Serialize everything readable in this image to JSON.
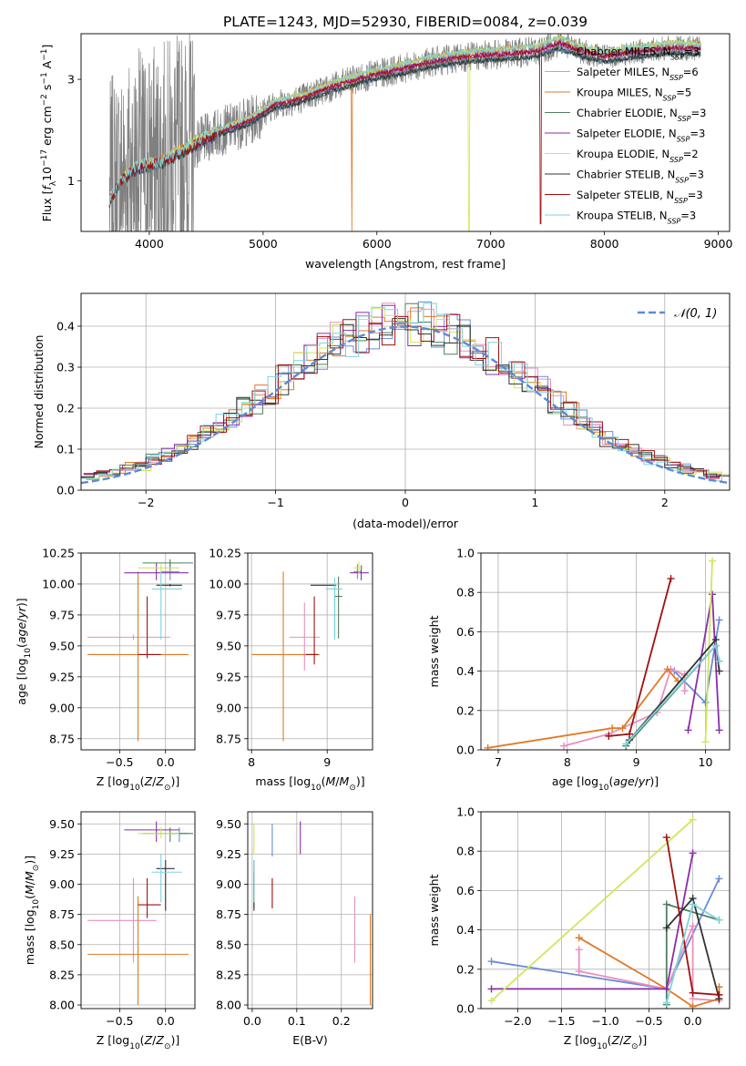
{
  "figure": {
    "title": "PLATE=1243, MJD=52930, FIBERID=0084, z=0.039"
  },
  "colors": {
    "data": "#808080",
    "Chabrier MILES": "#6a8bd8",
    "Salpeter MILES": "#e88fc0",
    "Kroupa MILES": "#e07a26",
    "Chabrier ELODIE": "#4f7f5f",
    "Salpeter ELODIE": "#8a2ea8",
    "Kroupa ELODIE": "#cfe85a",
    "Chabrier STELIB": "#333333",
    "Salpeter STELIB": "#a01010",
    "Kroupa STELIB": "#7dd3dc",
    "gauss": "#5b8ad8",
    "grid": "#b0b0b0"
  },
  "chart_data": [
    {
      "id": "spectrum",
      "type": "line",
      "title": "PLATE=1243, MJD=52930, FIBERID=0084, z=0.039",
      "xlabel": "wavelength [Angstrom, rest frame]",
      "ylabel": "Flux [f_λ 10^-17 erg cm^-2 s^-1 A^-1]",
      "xlim": [
        3400,
        9100
      ],
      "ylim": [
        0,
        3.9
      ],
      "xticks": [
        "4000",
        "5000",
        "6000",
        "7000",
        "8000",
        "9000"
      ],
      "yticks": [
        "1",
        "3"
      ],
      "legend_position": "right",
      "data_series": "observed spectrum (gray, noisy)",
      "continuum_points": [
        [
          3650,
          0.6
        ],
        [
          3750,
          1.0
        ],
        [
          3850,
          1.2
        ],
        [
          3950,
          1.3
        ],
        [
          4100,
          1.35
        ],
        [
          4300,
          1.6
        ],
        [
          4600,
          1.95
        ],
        [
          4900,
          2.2
        ],
        [
          5100,
          2.5
        ],
        [
          5300,
          2.6
        ],
        [
          5600,
          2.85
        ],
        [
          5900,
          3.05
        ],
        [
          6200,
          3.2
        ],
        [
          6500,
          3.35
        ],
        [
          6800,
          3.45
        ],
        [
          7100,
          3.5
        ],
        [
          7400,
          3.55
        ],
        [
          7600,
          3.72
        ],
        [
          7800,
          3.55
        ],
        [
          8000,
          3.45
        ],
        [
          8300,
          3.55
        ],
        [
          8600,
          3.62
        ],
        [
          8850,
          3.6
        ]
      ],
      "dips": [
        {
          "x": 5780,
          "y": 0,
          "series": "Kroupa MILES"
        },
        {
          "x": 6810,
          "y": 0,
          "series": "Kroupa ELODIE"
        },
        {
          "x": 7440,
          "y": 0.15,
          "series": "Salpeter STELIB"
        }
      ],
      "series": [
        {
          "name": "Chabrier MILES",
          "n_ssp": "3"
        },
        {
          "name": "Salpeter MILES",
          "n_ssp": "6"
        },
        {
          "name": "Kroupa MILES",
          "n_ssp": "5"
        },
        {
          "name": "Chabrier ELODIE",
          "n_ssp": "3"
        },
        {
          "name": "Salpeter ELODIE",
          "n_ssp": "3"
        },
        {
          "name": "Kroupa ELODIE",
          "n_ssp": "2"
        },
        {
          "name": "Chabrier STELIB",
          "n_ssp": "3"
        },
        {
          "name": "Salpeter STELIB",
          "n_ssp": "3"
        },
        {
          "name": "Kroupa STELIB",
          "n_ssp": "3"
        }
      ]
    },
    {
      "id": "residuals",
      "type": "histogram",
      "xlabel": "(data-model)/error",
      "ylabel": "Normed distribution",
      "xlim": [
        -2.5,
        2.5
      ],
      "ylim": [
        0,
        0.48
      ],
      "xticks": [
        "−2",
        "−1",
        "0",
        "1",
        "2"
      ],
      "yticks": [
        "0.0",
        "0.1",
        "0.2",
        "0.3",
        "0.4"
      ],
      "grid": true,
      "legend_position": "top-right",
      "legend_label": "𝒩(0, 1)",
      "bins": 50,
      "reference_curve": "normal distribution, mean 0, sd 1"
    },
    {
      "id": "age_vs_Z",
      "type": "errorbar",
      "xlabel": "Z [log10(Z/Z⊙)]",
      "ylabel": "age [log10(age/yr)]",
      "xlim": [
        -0.92,
        0.32
      ],
      "ylim": [
        8.66,
        10.25
      ],
      "xticks": [
        "−0.5",
        "0.0"
      ],
      "yticks": [
        "8.75",
        "9.00",
        "9.25",
        "9.50",
        "9.75",
        "10.00",
        "10.25"
      ],
      "points": [
        {
          "series": "Chabrier MILES",
          "x": 0.05,
          "xlo": -0.05,
          "xhi": 0.15,
          "y": 10.1,
          "ylo": 10.03,
          "yhi": 10.17
        },
        {
          "series": "Salpeter MILES",
          "x": -0.35,
          "xlo": -0.85,
          "xhi": 0.05,
          "y": 9.57,
          "ylo": 9.55,
          "yhi": 9.59
        },
        {
          "series": "Kroupa MILES",
          "x": -0.3,
          "xlo": -0.85,
          "xhi": 0.25,
          "y": 9.43,
          "ylo": 8.73,
          "yhi": 10.1
        },
        {
          "series": "Chabrier ELODIE",
          "x": 0.05,
          "xlo": -0.25,
          "xhi": 0.3,
          "y": 10.17,
          "ylo": 10.12,
          "yhi": 10.2
        },
        {
          "series": "Salpeter ELODIE",
          "x": -0.1,
          "xlo": -0.45,
          "xhi": 0.25,
          "y": 10.09,
          "ylo": 10.03,
          "yhi": 10.17
        },
        {
          "series": "Kroupa ELODIE",
          "x": -0.05,
          "xlo": -0.3,
          "xhi": 0.15,
          "y": 10.13,
          "ylo": 10.1,
          "yhi": 10.16
        },
        {
          "series": "Chabrier STELIB",
          "x": 0.05,
          "xlo": -0.1,
          "xhi": 0.18,
          "y": 9.99,
          "ylo": 9.98,
          "yhi": 10.0
        },
        {
          "series": "Salpeter STELIB",
          "x": -0.2,
          "xlo": -0.3,
          "xhi": -0.05,
          "y": 9.43,
          "ylo": 9.4,
          "yhi": 9.9
        },
        {
          "series": "Kroupa STELIB",
          "x": -0.05,
          "xlo": -0.15,
          "xhi": 0.18,
          "y": 9.96,
          "ylo": 9.55,
          "yhi": 10.1
        }
      ]
    },
    {
      "id": "age_vs_mass",
      "type": "errorbar",
      "xlabel": "mass [log10(M/M⊙)]",
      "ylabel": "",
      "xlim": [
        7.95,
        9.6
      ],
      "ylim": [
        8.66,
        10.25
      ],
      "xticks": [
        "8",
        "9"
      ],
      "yticks": [
        "8.75",
        "9.00",
        "9.25",
        "9.50",
        "9.75",
        "10.00",
        "10.25"
      ],
      "points": [
        {
          "series": "Chabrier MILES",
          "x": 9.4,
          "xlo": 9.35,
          "xhi": 9.45,
          "y": 10.1,
          "ylo": 10.04,
          "yhi": 10.16
        },
        {
          "series": "Salpeter MILES",
          "x": 8.7,
          "xlo": 8.5,
          "xhi": 8.9,
          "y": 9.57,
          "ylo": 9.3,
          "yhi": 9.85
        },
        {
          "series": "Kroupa MILES",
          "x": 8.42,
          "xlo": 8.0,
          "xhi": 8.9,
          "y": 9.43,
          "ylo": 8.73,
          "yhi": 10.1
        },
        {
          "series": "Chabrier ELODIE",
          "x": 9.15,
          "xlo": 9.1,
          "xhi": 9.2,
          "y": 9.9,
          "ylo": 9.56,
          "yhi": 10.06
        },
        {
          "series": "Salpeter ELODIE",
          "x": 9.45,
          "xlo": 9.3,
          "xhi": 9.55,
          "y": 10.09,
          "ylo": 10.03,
          "yhi": 10.15
        },
        {
          "series": "Kroupa ELODIE",
          "x": 9.42,
          "xlo": 9.35,
          "xhi": 9.48,
          "y": 10.13,
          "ylo": 10.08,
          "yhi": 10.18
        },
        {
          "series": "Chabrier STELIB",
          "x": 9.1,
          "xlo": 8.78,
          "xhi": 9.12,
          "y": 9.99,
          "ylo": 9.57,
          "yhi": 10.0
        },
        {
          "series": "Salpeter STELIB",
          "x": 8.83,
          "xlo": 8.72,
          "xhi": 8.88,
          "y": 9.43,
          "ylo": 9.35,
          "yhi": 9.9
        },
        {
          "series": "Kroupa STELIB",
          "x": 9.1,
          "xlo": 8.98,
          "xhi": 9.2,
          "y": 9.96,
          "ylo": 9.55,
          "yhi": 10.05
        }
      ]
    },
    {
      "id": "weight_vs_age",
      "type": "line",
      "xlabel": "age [log10(age/yr)]",
      "ylabel": "mass weight",
      "xlim": [
        6.75,
        10.35
      ],
      "ylim": [
        0,
        1.0
      ],
      "xticks": [
        "7",
        "8",
        "9",
        "10"
      ],
      "yticks": [
        "0.0",
        "0.2",
        "0.4",
        "0.6",
        "0.8",
        "1.0"
      ],
      "grid": true,
      "series": [
        {
          "name": "Chabrier MILES",
          "x": [
            9.55,
            10.0,
            10.2
          ],
          "y": [
            0.4,
            0.24,
            0.66
          ]
        },
        {
          "name": "Salpeter MILES",
          "x": [
            7.95,
            8.6,
            9.3,
            9.5,
            9.7,
            9.7
          ],
          "y": [
            0.02,
            0.08,
            0.19,
            0.41,
            0.38,
            0.3
          ]
        },
        {
          "name": "Kroupa MILES",
          "x": [
            6.85,
            8.65,
            8.8,
            9.45,
            9.6
          ],
          "y": [
            0.01,
            0.11,
            0.11,
            0.41,
            0.35
          ]
        },
        {
          "name": "Chabrier ELODIE",
          "x": [
            8.85,
            10.15,
            10.2
          ],
          "y": [
            0.02,
            0.53,
            0.45
          ]
        },
        {
          "name": "Salpeter ELODIE",
          "x": [
            9.75,
            10.1,
            10.2
          ],
          "y": [
            0.1,
            0.79,
            0.1
          ]
        },
        {
          "name": "Kroupa ELODIE",
          "x": [
            10.0,
            10.1
          ],
          "y": [
            0.04,
            0.96
          ]
        },
        {
          "name": "Chabrier STELIB",
          "x": [
            8.9,
            10.15,
            10.2
          ],
          "y": [
            0.05,
            0.56,
            0.4
          ]
        },
        {
          "name": "Salpeter STELIB",
          "x": [
            8.6,
            8.9,
            9.5
          ],
          "y": [
            0.07,
            0.08,
            0.87
          ]
        },
        {
          "name": "Kroupa STELIB",
          "x": [
            8.85,
            10.15,
            10.2
          ],
          "y": [
            0.03,
            0.53,
            0.45
          ]
        }
      ]
    },
    {
      "id": "mass_vs_Z",
      "type": "errorbar",
      "xlabel": "Z [log10(Z/Z⊙)]",
      "ylabel": "mass [log10(M/M⊙)]",
      "xlim": [
        -0.92,
        0.32
      ],
      "ylim": [
        7.97,
        9.6
      ],
      "xticks": [
        "−0.5",
        "0.0"
      ],
      "yticks": [
        "8.00",
        "8.25",
        "8.50",
        "8.75",
        "9.00",
        "9.25",
        "9.50"
      ],
      "points": [
        {
          "series": "Chabrier MILES",
          "x": 0.15,
          "xlo": 0.05,
          "xhi": 0.25,
          "y": 9.42,
          "ylo": 9.35,
          "yhi": 9.47
        },
        {
          "series": "Salpeter MILES",
          "x": -0.35,
          "xlo": -0.85,
          "xhi": -0.1,
          "y": 8.7,
          "ylo": 8.35,
          "yhi": 9.05
        },
        {
          "series": "Kroupa MILES",
          "x": -0.3,
          "xlo": -0.85,
          "xhi": 0.25,
          "y": 8.42,
          "ylo": 8.0,
          "yhi": 8.9
        },
        {
          "series": "Chabrier ELODIE",
          "x": 0.05,
          "xlo": -0.25,
          "xhi": 0.3,
          "y": 9.42,
          "ylo": 9.35,
          "yhi": 9.47
        },
        {
          "series": "Salpeter ELODIE",
          "x": -0.1,
          "xlo": -0.45,
          "xhi": 0.15,
          "y": 9.45,
          "ylo": 9.35,
          "yhi": 9.52
        },
        {
          "series": "Kroupa ELODIE",
          "x": -0.05,
          "xlo": -0.3,
          "xhi": 0.15,
          "y": 9.42,
          "ylo": 9.38,
          "yhi": 9.47
        },
        {
          "series": "Chabrier STELIB",
          "x": 0.0,
          "xlo": -0.1,
          "xhi": 0.1,
          "y": 9.13,
          "ylo": 8.78,
          "yhi": 9.2
        },
        {
          "series": "Salpeter STELIB",
          "x": -0.2,
          "xlo": -0.3,
          "xhi": -0.05,
          "y": 8.83,
          "ylo": 8.72,
          "yhi": 9.05
        },
        {
          "series": "Kroupa STELIB",
          "x": -0.05,
          "xlo": -0.15,
          "xhi": 0.18,
          "y": 9.1,
          "ylo": 8.85,
          "yhi": 9.25
        }
      ]
    },
    {
      "id": "mass_vs_ebv",
      "type": "errorbar",
      "xlabel": "E(B-V)",
      "ylabel": "",
      "xlim": [
        -0.01,
        0.27
      ],
      "ylim": [
        7.97,
        9.6
      ],
      "xticks": [
        "0.0",
        "0.1",
        "0.2"
      ],
      "yticks": [
        "8.00",
        "8.25",
        "8.50",
        "8.75",
        "9.00",
        "9.25",
        "9.50"
      ],
      "points": [
        {
          "series": "Chabrier MILES",
          "x": 0.045,
          "ylo": 9.23,
          "yhi": 9.5
        },
        {
          "series": "Salpeter MILES",
          "x": 0.23,
          "ylo": 8.35,
          "yhi": 8.9
        },
        {
          "series": "Kroupa MILES",
          "x": 0.265,
          "ylo": 8.0,
          "yhi": 8.75
        },
        {
          "series": "Chabrier ELODIE",
          "x": 0.004,
          "ylo": 8.8,
          "yhi": 9.2
        },
        {
          "series": "Salpeter ELODIE",
          "x": 0.108,
          "ylo": 9.25,
          "yhi": 9.52
        },
        {
          "series": "Kroupa ELODIE",
          "x": 0.004,
          "ylo": 9.25,
          "yhi": 9.5
        },
        {
          "series": "Chabrier STELIB",
          "x": 0.004,
          "ylo": 8.78,
          "yhi": 9.1
        },
        {
          "series": "Salpeter STELIB",
          "x": 0.045,
          "ylo": 8.8,
          "yhi": 9.05
        },
        {
          "series": "Kroupa STELIB",
          "x": 0.004,
          "ylo": 8.85,
          "yhi": 9.2
        }
      ]
    },
    {
      "id": "weight_vs_Z",
      "type": "line",
      "xlabel": "Z [log10(Z/Z⊙)]",
      "ylabel": "mass weight",
      "xlim": [
        -2.42,
        0.42
      ],
      "ylim": [
        0,
        1.0
      ],
      "xticks": [
        "−2.0",
        "−1.5",
        "−1.0",
        "−0.5",
        "0.0"
      ],
      "yticks": [
        "0.0",
        "0.2",
        "0.4",
        "0.6",
        "0.8",
        "1.0"
      ],
      "grid": true,
      "series": [
        {
          "name": "Chabrier MILES",
          "x": [
            -2.3,
            -0.3,
            0.3
          ],
          "y": [
            0.24,
            0.1,
            0.66
          ]
        },
        {
          "name": "Salpeter MILES",
          "x": [
            -1.3,
            -1.3,
            -0.3,
            0.0,
            0.0,
            0.3
          ],
          "y": [
            0.3,
            0.19,
            0.1,
            0.42,
            0.05,
            0.04
          ]
        },
        {
          "name": "Kroupa MILES",
          "x": [
            -1.3,
            -0.3,
            0.0,
            0.3,
            0.3
          ],
          "y": [
            0.36,
            0.1,
            0.01,
            0.05,
            0.11
          ]
        },
        {
          "name": "Chabrier ELODIE",
          "x": [
            -0.3,
            -0.3,
            0.3
          ],
          "y": [
            0.02,
            0.53,
            0.45
          ]
        },
        {
          "name": "Salpeter ELODIE",
          "x": [
            -2.3,
            -0.3,
            0.0
          ],
          "y": [
            0.1,
            0.1,
            0.79
          ]
        },
        {
          "name": "Kroupa ELODIE",
          "x": [
            -2.3,
            0.0
          ],
          "y": [
            0.04,
            0.96
          ]
        },
        {
          "name": "Chabrier STELIB",
          "x": [
            -0.3,
            0.0,
            0.3
          ],
          "y": [
            0.41,
            0.56,
            0.05
          ]
        },
        {
          "name": "Salpeter STELIB",
          "x": [
            -0.3,
            0.0,
            0.3
          ],
          "y": [
            0.87,
            0.08,
            0.07
          ]
        },
        {
          "name": "Kroupa STELIB",
          "x": [
            -0.3,
            0.0,
            0.3
          ],
          "y": [
            0.03,
            0.53,
            0.45
          ]
        }
      ]
    }
  ]
}
